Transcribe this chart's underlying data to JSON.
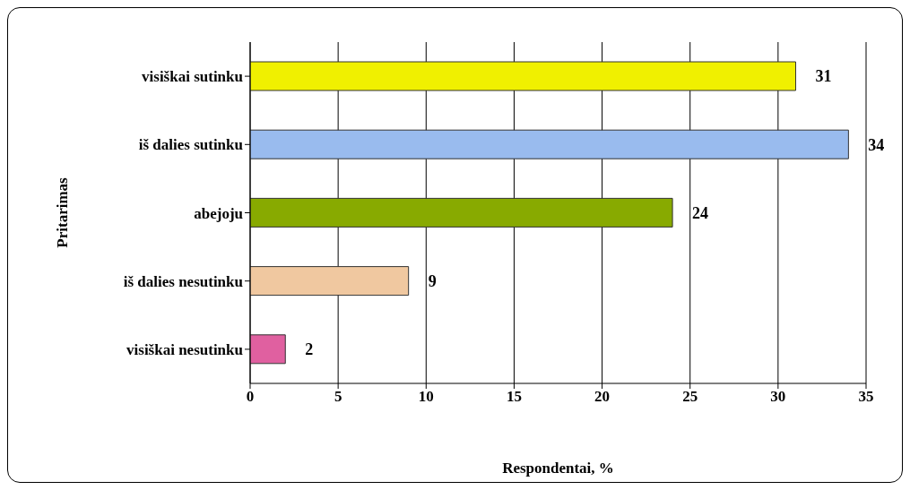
{
  "chart_data": {
    "type": "bar",
    "orientation": "horizontal",
    "xlabel": "Respondentai, %",
    "ylabel": "Pritarimas",
    "categories": [
      "visiškai sutinku",
      "iš dalies sutinku",
      "abejoju",
      "iš dalies nesutinku",
      "visiškai nesutinku"
    ],
    "values": [
      31,
      34,
      24,
      9,
      2
    ],
    "colors": [
      "#f0f000",
      "#99bbee",
      "#88aa00",
      "#f0c8a0",
      "#e060a0"
    ],
    "xlim": [
      0,
      35
    ],
    "xticks": [
      0,
      5,
      10,
      15,
      20,
      25,
      30,
      35
    ],
    "grid": "x",
    "data_labels": true,
    "legend": false
  }
}
